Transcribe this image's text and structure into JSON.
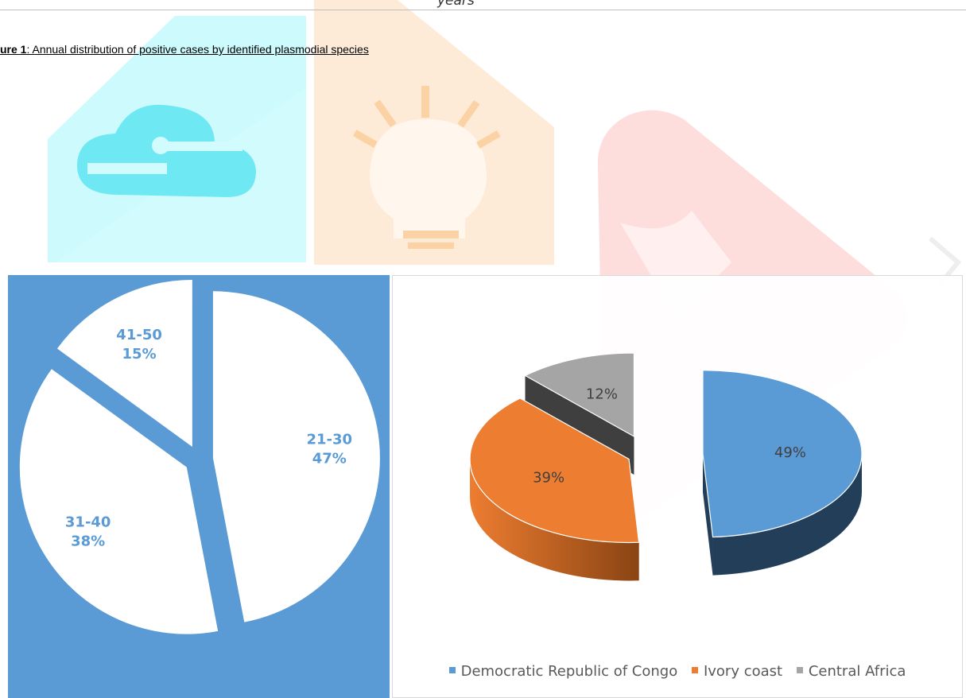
{
  "header": {
    "top_fragment": "years",
    "caption_bold": "ure 1",
    "caption_rest": ": Annual distribution of positive cases by identified plasmodial species"
  },
  "chart_data": [
    {
      "type": "pie",
      "title": "",
      "categories": [
        "21-30",
        "31-40",
        "41-50"
      ],
      "values": [
        47,
        38,
        15
      ],
      "unit": "%",
      "data_labels": [
        "47%",
        "38%",
        "15%"
      ],
      "slice_color": "#ffffff",
      "label_color": "#5b9bd5",
      "background_color": "#5b9bd5",
      "exploded": true,
      "legend": "none"
    },
    {
      "type": "pie",
      "style": "3d-exploded",
      "title": "",
      "categories": [
        "Democratic Republic of Congo",
        "Ivory coast",
        "Central Africa"
      ],
      "values": [
        49,
        39,
        12
      ],
      "unit": "%",
      "data_labels": [
        "49%",
        "39%",
        "12%"
      ],
      "colors": [
        "#5b9bd5",
        "#ed7d31",
        "#a5a5a5"
      ],
      "legend": "bottom"
    }
  ]
}
